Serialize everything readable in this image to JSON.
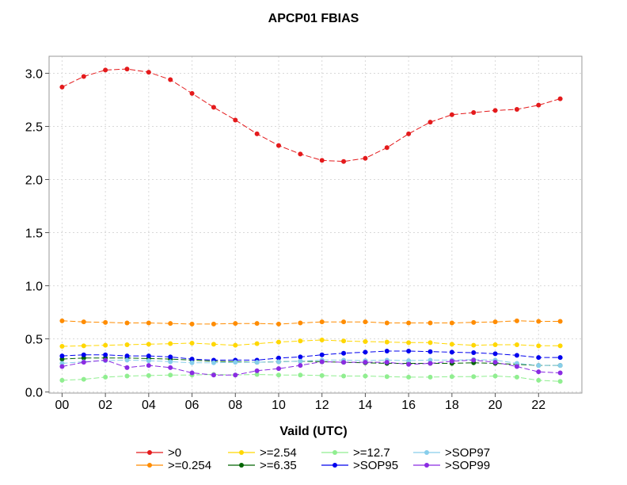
{
  "chart_data": {
    "type": "line",
    "title": "APCP01 FBIAS",
    "xlabel": "Vaild (UTC)",
    "ylabel": "",
    "x": [
      0,
      1,
      2,
      3,
      4,
      5,
      6,
      7,
      8,
      9,
      10,
      11,
      12,
      13,
      14,
      15,
      16,
      17,
      18,
      19,
      20,
      21,
      22,
      23
    ],
    "xticks": [
      "00",
      "02",
      "04",
      "06",
      "08",
      "10",
      "12",
      "14",
      "16",
      "18",
      "20",
      "22"
    ],
    "xlim": [
      -0.6,
      24.0
    ],
    "ylim": [
      -0.01,
      3.16
    ],
    "yticks": [
      "0.0",
      "0.5",
      "1.0",
      "1.5",
      "2.0",
      "2.5",
      "3.0"
    ],
    "grid": true,
    "legend": "bottom, 4 columns",
    "series": [
      {
        "name": ">0",
        "color": "#e41a1c",
        "values": [
          2.87,
          2.97,
          3.03,
          3.04,
          3.01,
          2.94,
          2.81,
          2.68,
          2.56,
          2.43,
          2.32,
          2.24,
          2.18,
          2.17,
          2.2,
          2.3,
          2.43,
          2.54,
          2.61,
          2.63,
          2.65,
          2.66,
          2.7,
          2.76
        ]
      },
      {
        "name": ">=0.254",
        "color": "#ff8c00",
        "values": [
          0.67,
          0.66,
          0.655,
          0.65,
          0.65,
          0.645,
          0.64,
          0.64,
          0.645,
          0.645,
          0.64,
          0.65,
          0.66,
          0.66,
          0.66,
          0.65,
          0.65,
          0.65,
          0.65,
          0.655,
          0.66,
          0.67,
          0.665,
          0.665
        ]
      },
      {
        "name": ">=2.54",
        "color": "#ffd700",
        "values": [
          0.43,
          0.435,
          0.44,
          0.445,
          0.45,
          0.455,
          0.46,
          0.45,
          0.44,
          0.455,
          0.47,
          0.48,
          0.49,
          0.48,
          0.475,
          0.47,
          0.465,
          0.465,
          0.45,
          0.44,
          0.445,
          0.445,
          0.435,
          0.435
        ]
      },
      {
        "name": ">=6.35",
        "color": "#006400",
        "values": [
          0.31,
          0.32,
          0.32,
          0.32,
          0.315,
          0.31,
          0.3,
          0.29,
          0.285,
          0.28,
          0.285,
          0.29,
          0.285,
          0.28,
          0.275,
          0.27,
          0.27,
          0.27,
          0.27,
          0.275,
          0.27,
          0.26,
          0.25,
          0.25
        ]
      },
      {
        "name": ">=12.7",
        "color": "#90ee90",
        "values": [
          0.11,
          0.12,
          0.14,
          0.15,
          0.155,
          0.16,
          0.16,
          0.165,
          0.16,
          0.165,
          0.16,
          0.16,
          0.155,
          0.15,
          0.15,
          0.145,
          0.14,
          0.14,
          0.145,
          0.145,
          0.15,
          0.14,
          0.11,
          0.1
        ]
      },
      {
        "name": ">SOP95",
        "color": "#0000ee",
        "values": [
          0.34,
          0.35,
          0.35,
          0.34,
          0.34,
          0.33,
          0.31,
          0.3,
          0.3,
          0.3,
          0.32,
          0.33,
          0.35,
          0.365,
          0.375,
          0.385,
          0.385,
          0.38,
          0.375,
          0.37,
          0.36,
          0.345,
          0.325,
          0.325
        ]
      },
      {
        "name": ">SOP97",
        "color": "#87ceeb",
        "values": [
          0.27,
          0.285,
          0.295,
          0.3,
          0.295,
          0.285,
          0.275,
          0.275,
          0.28,
          0.28,
          0.285,
          0.29,
          0.3,
          0.3,
          0.295,
          0.3,
          0.295,
          0.3,
          0.3,
          0.305,
          0.3,
          0.27,
          0.25,
          0.25
        ]
      },
      {
        "name": ">SOP99",
        "color": "#8a2be2",
        "values": [
          0.24,
          0.28,
          0.3,
          0.23,
          0.25,
          0.23,
          0.18,
          0.16,
          0.16,
          0.2,
          0.22,
          0.25,
          0.285,
          0.28,
          0.28,
          0.28,
          0.26,
          0.27,
          0.29,
          0.3,
          0.28,
          0.24,
          0.19,
          0.18
        ]
      }
    ]
  }
}
